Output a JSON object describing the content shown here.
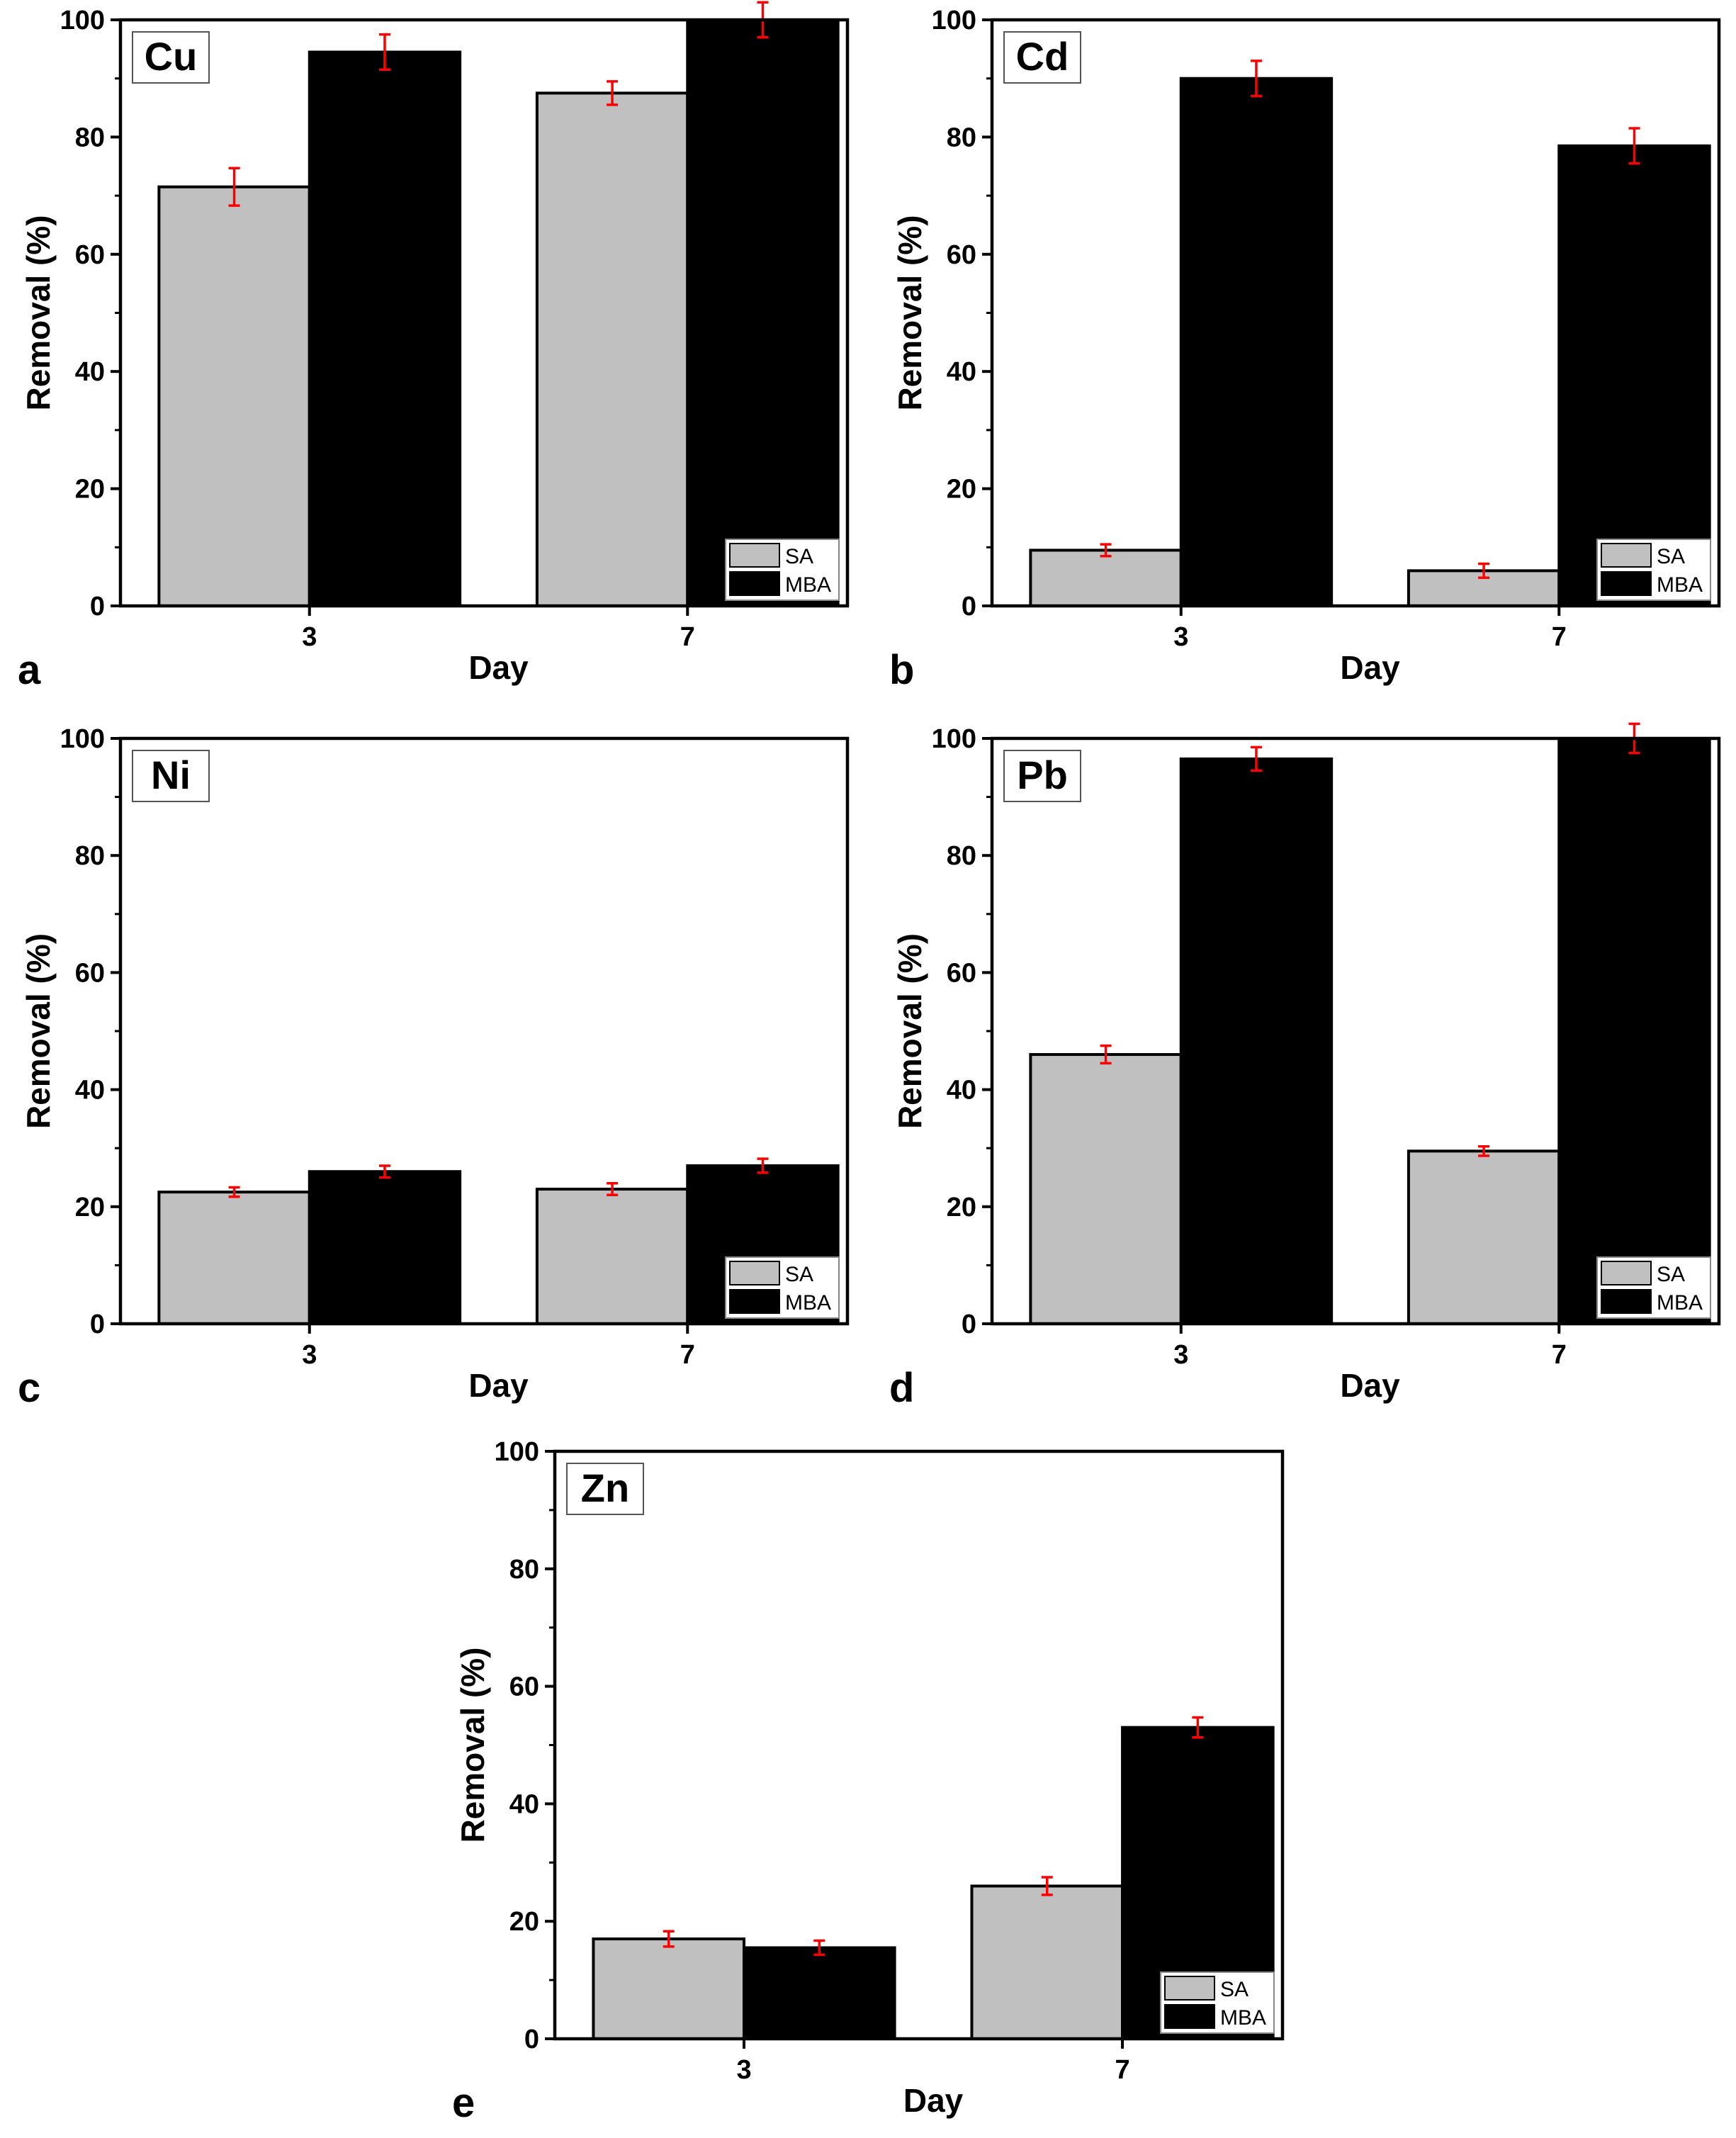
{
  "colors": {
    "SA": "#c0c0c0",
    "MBA": "#000000",
    "error_bar": "#ff0000",
    "axis": "#000000"
  },
  "chart_data": [
    {
      "type": "bar",
      "panel": "a",
      "metal": "Cu",
      "xlabel": "Day",
      "ylabel": "Removal (%)",
      "categories": [
        "3",
        "7"
      ],
      "ylim": [
        0,
        100
      ],
      "yticks": [
        "0",
        "20",
        "40",
        "60",
        "80",
        "100"
      ],
      "legend": [
        "SA",
        "MBA"
      ],
      "legend_position": "bottom-right",
      "series": [
        {
          "name": "SA",
          "values": [
            71.5,
            87.5
          ],
          "errors": [
            3.2,
            2.0
          ]
        },
        {
          "name": "MBA",
          "values": [
            94.5,
            100
          ],
          "errors": [
            3.0,
            3.0
          ]
        }
      ]
    },
    {
      "type": "bar",
      "panel": "b",
      "metal": "Cd",
      "xlabel": "Day",
      "ylabel": "Removal (%)",
      "categories": [
        "3",
        "7"
      ],
      "ylim": [
        0,
        100
      ],
      "yticks": [
        "0",
        "20",
        "40",
        "60",
        "80",
        "100"
      ],
      "legend": [
        "SA",
        "MBA"
      ],
      "legend_position": "bottom-right",
      "series": [
        {
          "name": "SA",
          "values": [
            9.5,
            6
          ],
          "errors": [
            1.0,
            1.2
          ]
        },
        {
          "name": "MBA",
          "values": [
            90,
            78.5
          ],
          "errors": [
            3.0,
            3.0
          ]
        }
      ]
    },
    {
      "type": "bar",
      "panel": "c",
      "metal": "Ni",
      "xlabel": "Day",
      "ylabel": "Removal (%)",
      "categories": [
        "3",
        "7"
      ],
      "ylim": [
        0,
        100
      ],
      "yticks": [
        "0",
        "20",
        "40",
        "60",
        "80",
        "100"
      ],
      "legend": [
        "SA",
        "MBA"
      ],
      "legend_position": "bottom-right",
      "series": [
        {
          "name": "SA",
          "values": [
            22.5,
            23
          ],
          "errors": [
            0.8,
            1.0
          ]
        },
        {
          "name": "MBA",
          "values": [
            26,
            27
          ],
          "errors": [
            1.0,
            1.2
          ]
        }
      ]
    },
    {
      "type": "bar",
      "panel": "d",
      "metal": "Pb",
      "xlabel": "Day",
      "ylabel": "Removal (%)",
      "categories": [
        "3",
        "7"
      ],
      "ylim": [
        0,
        100
      ],
      "yticks": [
        "0",
        "20",
        "40",
        "60",
        "80",
        "100"
      ],
      "legend": [
        "SA",
        "MBA"
      ],
      "legend_position": "bottom-right",
      "series": [
        {
          "name": "SA",
          "values": [
            46,
            29.5
          ],
          "errors": [
            1.5,
            0.8
          ]
        },
        {
          "name": "MBA",
          "values": [
            96.5,
            100
          ],
          "errors": [
            2.0,
            2.5
          ]
        }
      ]
    },
    {
      "type": "bar",
      "panel": "e",
      "metal": "Zn",
      "xlabel": "Day",
      "ylabel": "Removal (%)",
      "categories": [
        "3",
        "7"
      ],
      "ylim": [
        0,
        100
      ],
      "yticks": [
        "0",
        "20",
        "40",
        "60",
        "80",
        "100"
      ],
      "legend": [
        "SA",
        "MBA"
      ],
      "legend_position": "bottom-right",
      "series": [
        {
          "name": "SA",
          "values": [
            17,
            26
          ],
          "errors": [
            1.3,
            1.5
          ]
        },
        {
          "name": "MBA",
          "values": [
            15.5,
            53
          ],
          "errors": [
            1.2,
            1.7
          ]
        }
      ]
    }
  ]
}
